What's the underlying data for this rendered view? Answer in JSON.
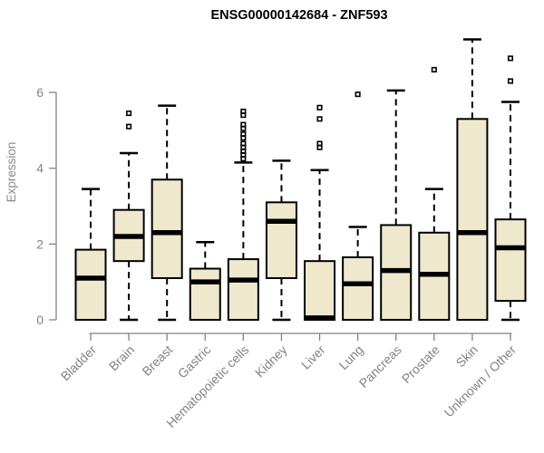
{
  "chart_data": {
    "type": "boxplot",
    "title": "ENSG00000142684 - ZNF593",
    "ylabel": "Expression",
    "xlabel": "",
    "ylim": [
      0,
      7.5
    ],
    "yticks": [
      0,
      2,
      4,
      6
    ],
    "grid": false,
    "legend": "none",
    "box_fill": "#EEE8CD",
    "box_stroke": "#000000",
    "median_color": "#000000",
    "axis_color": "#828282",
    "title_color": "#000000",
    "categories": [
      "Bladder",
      "Brain",
      "Breast",
      "Gastric",
      "Hematopoietic cells",
      "Kidney",
      "Liver",
      "Lung",
      "Pancreas",
      "Prostate",
      "Skin",
      "Unknown / Other"
    ],
    "boxes": [
      {
        "category": "Bladder",
        "whisker_low": 0,
        "q1": 0,
        "median": 1.1,
        "q3": 1.85,
        "whisker_high": 3.45,
        "outliers": []
      },
      {
        "category": "Brain",
        "whisker_low": 0,
        "q1": 1.55,
        "median": 2.2,
        "q3": 2.9,
        "whisker_high": 4.4,
        "outliers": [
          5.1,
          5.45
        ]
      },
      {
        "category": "Breast",
        "whisker_low": 0,
        "q1": 1.1,
        "median": 2.3,
        "q3": 3.7,
        "whisker_high": 5.65,
        "outliers": []
      },
      {
        "category": "Gastric",
        "whisker_low": 0,
        "q1": 0,
        "median": 1.0,
        "q3": 1.35,
        "whisker_high": 2.05,
        "outliers": []
      },
      {
        "category": "Hematopoietic cells",
        "whisker_low": 0,
        "q1": 0,
        "median": 1.05,
        "q3": 1.6,
        "whisker_high": 4.15,
        "outliers": [
          4.25,
          4.35,
          4.45,
          4.55,
          4.65,
          4.8,
          4.9,
          5.05,
          5.15,
          5.4,
          5.5
        ]
      },
      {
        "category": "Kidney",
        "whisker_low": 0,
        "q1": 1.1,
        "median": 2.6,
        "q3": 3.1,
        "whisker_high": 4.2,
        "outliers": []
      },
      {
        "category": "Liver",
        "whisker_low": 0,
        "q1": 0,
        "median": 0.05,
        "q3": 1.55,
        "whisker_high": 3.95,
        "outliers": [
          4.55,
          4.65,
          5.3,
          5.6
        ]
      },
      {
        "category": "Lung",
        "whisker_low": 0,
        "q1": 0,
        "median": 0.95,
        "q3": 1.65,
        "whisker_high": 2.45,
        "outliers": [
          5.95
        ]
      },
      {
        "category": "Pancreas",
        "whisker_low": 0,
        "q1": 0,
        "median": 1.3,
        "q3": 2.5,
        "whisker_high": 6.05,
        "outliers": []
      },
      {
        "category": "Prostate",
        "whisker_low": 0,
        "q1": 0,
        "median": 1.2,
        "q3": 2.3,
        "whisker_high": 3.45,
        "outliers": [
          6.6
        ]
      },
      {
        "category": "Skin",
        "whisker_low": 0,
        "q1": 0,
        "median": 2.3,
        "q3": 5.3,
        "whisker_high": 7.4,
        "outliers": []
      },
      {
        "category": "Unknown / Other",
        "whisker_low": 0,
        "q1": 0.5,
        "median": 1.9,
        "q3": 2.65,
        "whisker_high": 5.75,
        "outliers": [
          6.3,
          6.9
        ]
      }
    ]
  }
}
